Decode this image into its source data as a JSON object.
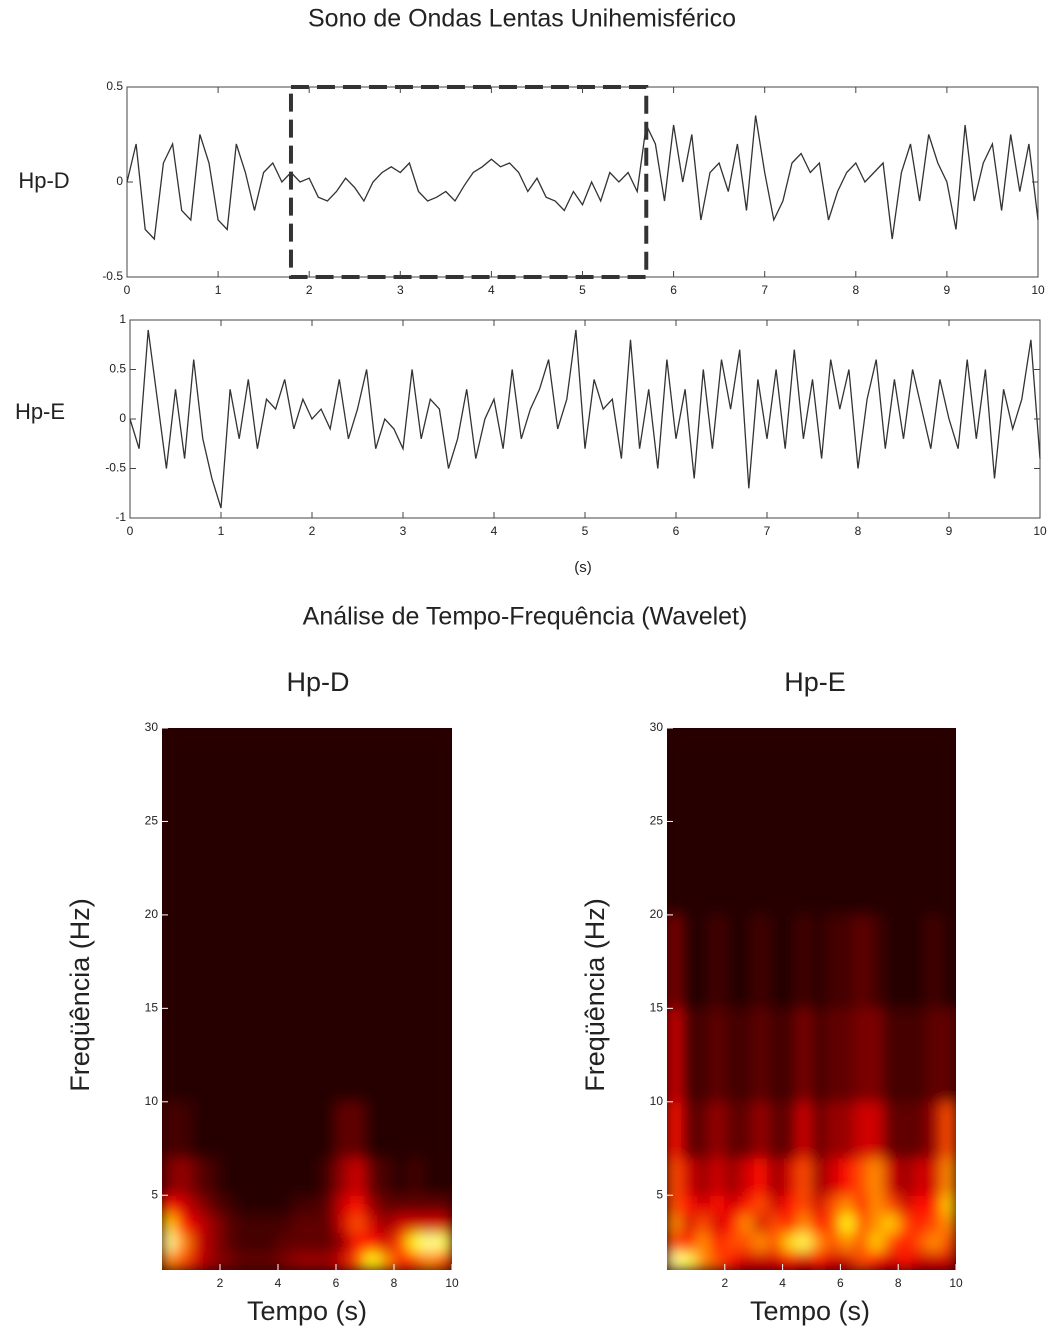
{
  "chart_data": [
    {
      "type": "line",
      "title": "Sono de Ondas Lentas Unihemisférico",
      "ylabel": "Hp-D",
      "xlim": [
        0,
        10
      ],
      "ylim": [
        -0.5,
        0.5
      ],
      "xticks": [
        0,
        1,
        2,
        3,
        4,
        5,
        6,
        7,
        8,
        9,
        10
      ],
      "yticks": [
        -0.5,
        0,
        0.5
      ],
      "highlight": [
        1.8,
        5.7
      ],
      "x": [
        0,
        0.1,
        0.2,
        0.3,
        0.4,
        0.5,
        0.6,
        0.7,
        0.8,
        0.9,
        1,
        1.1,
        1.2,
        1.3,
        1.4,
        1.5,
        1.6,
        1.7,
        1.8,
        1.9,
        2,
        2.1,
        2.2,
        2.3,
        2.4,
        2.5,
        2.6,
        2.7,
        2.8,
        2.9,
        3,
        3.1,
        3.2,
        3.3,
        3.4,
        3.5,
        3.6,
        3.7,
        3.8,
        3.9,
        4,
        4.1,
        4.2,
        4.3,
        4.4,
        4.5,
        4.6,
        4.7,
        4.8,
        4.9,
        5,
        5.1,
        5.2,
        5.3,
        5.4,
        5.5,
        5.6,
        5.7,
        5.8,
        5.9,
        6,
        6.1,
        6.2,
        6.3,
        6.4,
        6.5,
        6.6,
        6.7,
        6.8,
        6.9,
        7,
        7.1,
        7.2,
        7.3,
        7.4,
        7.5,
        7.6,
        7.7,
        7.8,
        7.9,
        8,
        8.1,
        8.2,
        8.3,
        8.4,
        8.5,
        8.6,
        8.7,
        8.8,
        8.9,
        9,
        9.1,
        9.2,
        9.3,
        9.4,
        9.5,
        9.6,
        9.7,
        9.8,
        9.9,
        10
      ],
      "series": [
        {
          "color": "#333333",
          "values": [
            0,
            0.2,
            -0.25,
            -0.3,
            0.1,
            0.2,
            -0.15,
            -0.2,
            0.25,
            0.1,
            -0.2,
            -0.25,
            0.2,
            0.05,
            -0.15,
            0.05,
            0.1,
            0.0,
            0.05,
            0.0,
            0.02,
            -0.08,
            -0.1,
            -0.05,
            0.02,
            -0.03,
            -0.1,
            0.0,
            0.05,
            0.08,
            0.05,
            0.1,
            -0.05,
            -0.1,
            -0.08,
            -0.05,
            -0.1,
            -0.02,
            0.05,
            0.08,
            0.12,
            0.08,
            0.1,
            0.05,
            -0.05,
            0.02,
            -0.08,
            -0.1,
            -0.15,
            -0.05,
            -0.12,
            0.0,
            -0.1,
            0.05,
            0.0,
            0.05,
            -0.05,
            0.3,
            0.2,
            -0.1,
            0.3,
            0.0,
            0.25,
            -0.2,
            0.05,
            0.1,
            -0.05,
            0.2,
            -0.15,
            0.35,
            0.05,
            -0.2,
            -0.1,
            0.1,
            0.15,
            0.05,
            0.1,
            -0.2,
            -0.05,
            0.05,
            0.1,
            0.0,
            0.05,
            0.1,
            -0.3,
            0.05,
            0.2,
            -0.1,
            0.25,
            0.1,
            0.0,
            -0.25,
            0.3,
            -0.1,
            0.1,
            0.2,
            -0.15,
            0.25,
            -0.05,
            0.2,
            -0.2
          ]
        }
      ]
    },
    {
      "type": "line",
      "ylabel": "Hp-E",
      "xlabel": "(s)",
      "xlim": [
        0,
        10
      ],
      "ylim": [
        -1,
        1
      ],
      "xticks": [
        0,
        1,
        2,
        3,
        4,
        5,
        6,
        7,
        8,
        9,
        10
      ],
      "yticks": [
        -1,
        -0.5,
        0,
        0.5,
        1
      ],
      "x": [
        0,
        0.1,
        0.2,
        0.3,
        0.4,
        0.5,
        0.6,
        0.7,
        0.8,
        0.9,
        1,
        1.1,
        1.2,
        1.3,
        1.4,
        1.5,
        1.6,
        1.7,
        1.8,
        1.9,
        2,
        2.1,
        2.2,
        2.3,
        2.4,
        2.5,
        2.6,
        2.7,
        2.8,
        2.9,
        3,
        3.1,
        3.2,
        3.3,
        3.4,
        3.5,
        3.6,
        3.7,
        3.8,
        3.9,
        4,
        4.1,
        4.2,
        4.3,
        4.4,
        4.5,
        4.6,
        4.7,
        4.8,
        4.9,
        5,
        5.1,
        5.2,
        5.3,
        5.4,
        5.5,
        5.6,
        5.7,
        5.8,
        5.9,
        6,
        6.1,
        6.2,
        6.3,
        6.4,
        6.5,
        6.6,
        6.7,
        6.8,
        6.9,
        7,
        7.1,
        7.2,
        7.3,
        7.4,
        7.5,
        7.6,
        7.7,
        7.8,
        7.9,
        8,
        8.1,
        8.2,
        8.3,
        8.4,
        8.5,
        8.6,
        8.7,
        8.8,
        8.9,
        9,
        9.1,
        9.2,
        9.3,
        9.4,
        9.5,
        9.6,
        9.7,
        9.8,
        9.9,
        10
      ],
      "series": [
        {
          "color": "#333333",
          "values": [
            0,
            -0.3,
            0.9,
            0.2,
            -0.5,
            0.3,
            -0.4,
            0.6,
            -0.2,
            -0.6,
            -0.9,
            0.3,
            -0.2,
            0.4,
            -0.3,
            0.2,
            0.1,
            0.4,
            -0.1,
            0.2,
            0.0,
            0.1,
            -0.1,
            0.4,
            -0.2,
            0.1,
            0.5,
            -0.3,
            0.0,
            -0.1,
            -0.3,
            0.5,
            -0.2,
            0.2,
            0.1,
            -0.5,
            -0.2,
            0.3,
            -0.4,
            0.0,
            0.2,
            -0.3,
            0.5,
            -0.2,
            0.1,
            0.3,
            0.6,
            -0.1,
            0.2,
            0.9,
            -0.3,
            0.4,
            0.1,
            0.2,
            -0.4,
            0.8,
            -0.3,
            0.3,
            -0.5,
            0.6,
            -0.2,
            0.3,
            -0.6,
            0.5,
            -0.3,
            0.6,
            0.1,
            0.7,
            -0.7,
            0.4,
            -0.2,
            0.5,
            -0.3,
            0.7,
            -0.2,
            0.4,
            -0.4,
            0.6,
            0.1,
            0.5,
            -0.5,
            0.2,
            0.6,
            -0.3,
            0.4,
            -0.2,
            0.5,
            0.1,
            -0.3,
            0.4,
            0.0,
            -0.3,
            0.6,
            -0.2,
            0.5,
            -0.6,
            0.3,
            -0.1,
            0.2,
            0.8,
            -0.4
          ]
        }
      ]
    },
    {
      "type": "heatmap",
      "section_title": "Análise de Tempo-Frequência (Wavelet)",
      "title": "Hp-D",
      "xlabel": "Tempo (s)",
      "ylabel": "Freqüência (Hz)",
      "colormap": "hot",
      "xlim": [
        0,
        10
      ],
      "ylim": [
        1,
        30
      ],
      "xticks": [
        2,
        4,
        6,
        8,
        10
      ],
      "yticks": [
        5,
        10,
        15,
        20,
        25,
        30
      ],
      "xbins": [
        0,
        0.5,
        1,
        1.5,
        2,
        2.5,
        3,
        3.5,
        4,
        4.5,
        5,
        5.5,
        6,
        6.5,
        7,
        7.5,
        8,
        8.5,
        9,
        9.5,
        10
      ],
      "ybins": [
        1,
        2,
        3,
        4,
        5,
        7,
        10,
        15,
        20,
        30
      ],
      "z": [
        [
          0.6,
          0.5,
          0.3,
          0.2,
          0.15,
          0.1,
          0.1,
          0.1,
          0.15,
          0.2,
          0.2,
          0.2,
          0.3,
          0.5,
          0.8,
          0.6,
          0.4,
          0.5,
          0.6,
          0.5
        ],
        [
          1.0,
          0.6,
          0.3,
          0.2,
          0.1,
          0.05,
          0.05,
          0.05,
          0.1,
          0.1,
          0.1,
          0.1,
          0.2,
          0.4,
          0.4,
          0.3,
          0.5,
          0.8,
          1.0,
          0.9
        ],
        [
          0.7,
          0.4,
          0.3,
          0.2,
          0.1,
          0.05,
          0.05,
          0.05,
          0.05,
          0.1,
          0.1,
          0.1,
          0.3,
          0.5,
          0.3,
          0.2,
          0.3,
          0.3,
          0.3,
          0.3
        ],
        [
          0.4,
          0.3,
          0.2,
          0.1,
          0.05,
          0,
          0,
          0,
          0,
          0.05,
          0.05,
          0.1,
          0.3,
          0.4,
          0.2,
          0.1,
          0.1,
          0.1,
          0.1,
          0.1
        ],
        [
          0.15,
          0.2,
          0.1,
          0.05,
          0,
          0,
          0,
          0,
          0,
          0,
          0,
          0.05,
          0.2,
          0.3,
          0.1,
          0.05,
          0,
          0.05,
          0,
          0
        ],
        [
          0.05,
          0.05,
          0,
          0,
          0,
          0,
          0,
          0,
          0,
          0,
          0,
          0,
          0.1,
          0.1,
          0,
          0,
          0,
          0,
          0,
          0
        ],
        [
          0,
          0,
          0,
          0,
          0,
          0,
          0,
          0,
          0,
          0,
          0,
          0,
          0,
          0,
          0,
          0,
          0,
          0,
          0,
          0
        ],
        [
          0,
          0,
          0,
          0,
          0,
          0,
          0,
          0,
          0,
          0,
          0,
          0,
          0,
          0,
          0,
          0,
          0,
          0,
          0,
          0
        ],
        [
          0,
          0,
          0,
          0,
          0,
          0,
          0,
          0,
          0,
          0,
          0,
          0,
          0,
          0,
          0,
          0,
          0,
          0,
          0,
          0
        ]
      ]
    },
    {
      "type": "heatmap",
      "title": "Hp-E",
      "xlabel": "Tempo (s)",
      "ylabel": "Freqüência (Hz)",
      "colormap": "hot",
      "xlim": [
        0,
        10
      ],
      "ylim": [
        1,
        30
      ],
      "xticks": [
        2,
        4,
        6,
        8,
        10
      ],
      "yticks": [
        5,
        10,
        15,
        20,
        25,
        30
      ],
      "xbins": [
        0,
        0.5,
        1,
        1.5,
        2,
        2.5,
        3,
        3.5,
        4,
        4.5,
        5,
        5.5,
        6,
        6.5,
        7,
        7.5,
        8,
        8.5,
        9,
        9.5,
        10
      ],
      "ybins": [
        1,
        2,
        3,
        4,
        5,
        7,
        10,
        15,
        20,
        30
      ],
      "z": [
        [
          1.0,
          0.9,
          0.6,
          0.5,
          0.4,
          0.3,
          0.3,
          0.3,
          0.4,
          0.3,
          0.4,
          0.3,
          0.3,
          0.5,
          0.4,
          0.3,
          0.4,
          0.3,
          0.3,
          0.3
        ],
        [
          0.5,
          0.4,
          0.6,
          0.4,
          0.5,
          0.5,
          0.6,
          0.5,
          0.7,
          0.9,
          0.6,
          0.5,
          0.6,
          0.5,
          0.7,
          0.5,
          0.4,
          0.5,
          0.6,
          0.5
        ],
        [
          0.6,
          0.3,
          0.5,
          0.3,
          0.4,
          0.6,
          0.3,
          0.5,
          0.4,
          0.6,
          0.4,
          0.5,
          0.8,
          0.5,
          0.6,
          0.7,
          0.5,
          0.4,
          0.5,
          0.6
        ],
        [
          0.5,
          0.4,
          0.3,
          0.4,
          0.3,
          0.4,
          0.5,
          0.3,
          0.4,
          0.5,
          0.3,
          0.5,
          0.6,
          0.4,
          0.6,
          0.5,
          0.3,
          0.4,
          0.4,
          0.7
        ],
        [
          0.5,
          0.3,
          0.2,
          0.3,
          0.2,
          0.3,
          0.4,
          0.2,
          0.3,
          0.5,
          0.2,
          0.3,
          0.4,
          0.5,
          0.6,
          0.3,
          0.2,
          0.3,
          0.3,
          0.6
        ],
        [
          0.4,
          0.1,
          0.1,
          0.2,
          0.1,
          0.1,
          0.2,
          0.1,
          0.1,
          0.3,
          0.1,
          0.2,
          0.2,
          0.3,
          0.3,
          0.1,
          0.1,
          0.1,
          0.2,
          0.5
        ],
        [
          0.3,
          0.05,
          0.05,
          0.1,
          0.05,
          0.05,
          0.1,
          0.05,
          0.05,
          0.15,
          0.05,
          0.1,
          0.1,
          0.15,
          0.15,
          0.05,
          0.05,
          0.05,
          0.1,
          0.1
        ],
        [
          0.15,
          0,
          0,
          0.05,
          0,
          0,
          0.05,
          0,
          0,
          0.05,
          0,
          0.05,
          0.05,
          0.1,
          0.05,
          0,
          0,
          0,
          0.05,
          0
        ],
        [
          0,
          0,
          0,
          0,
          0,
          0,
          0,
          0,
          0,
          0,
          0,
          0,
          0,
          0,
          0,
          0,
          0,
          0,
          0,
          0
        ]
      ]
    }
  ]
}
